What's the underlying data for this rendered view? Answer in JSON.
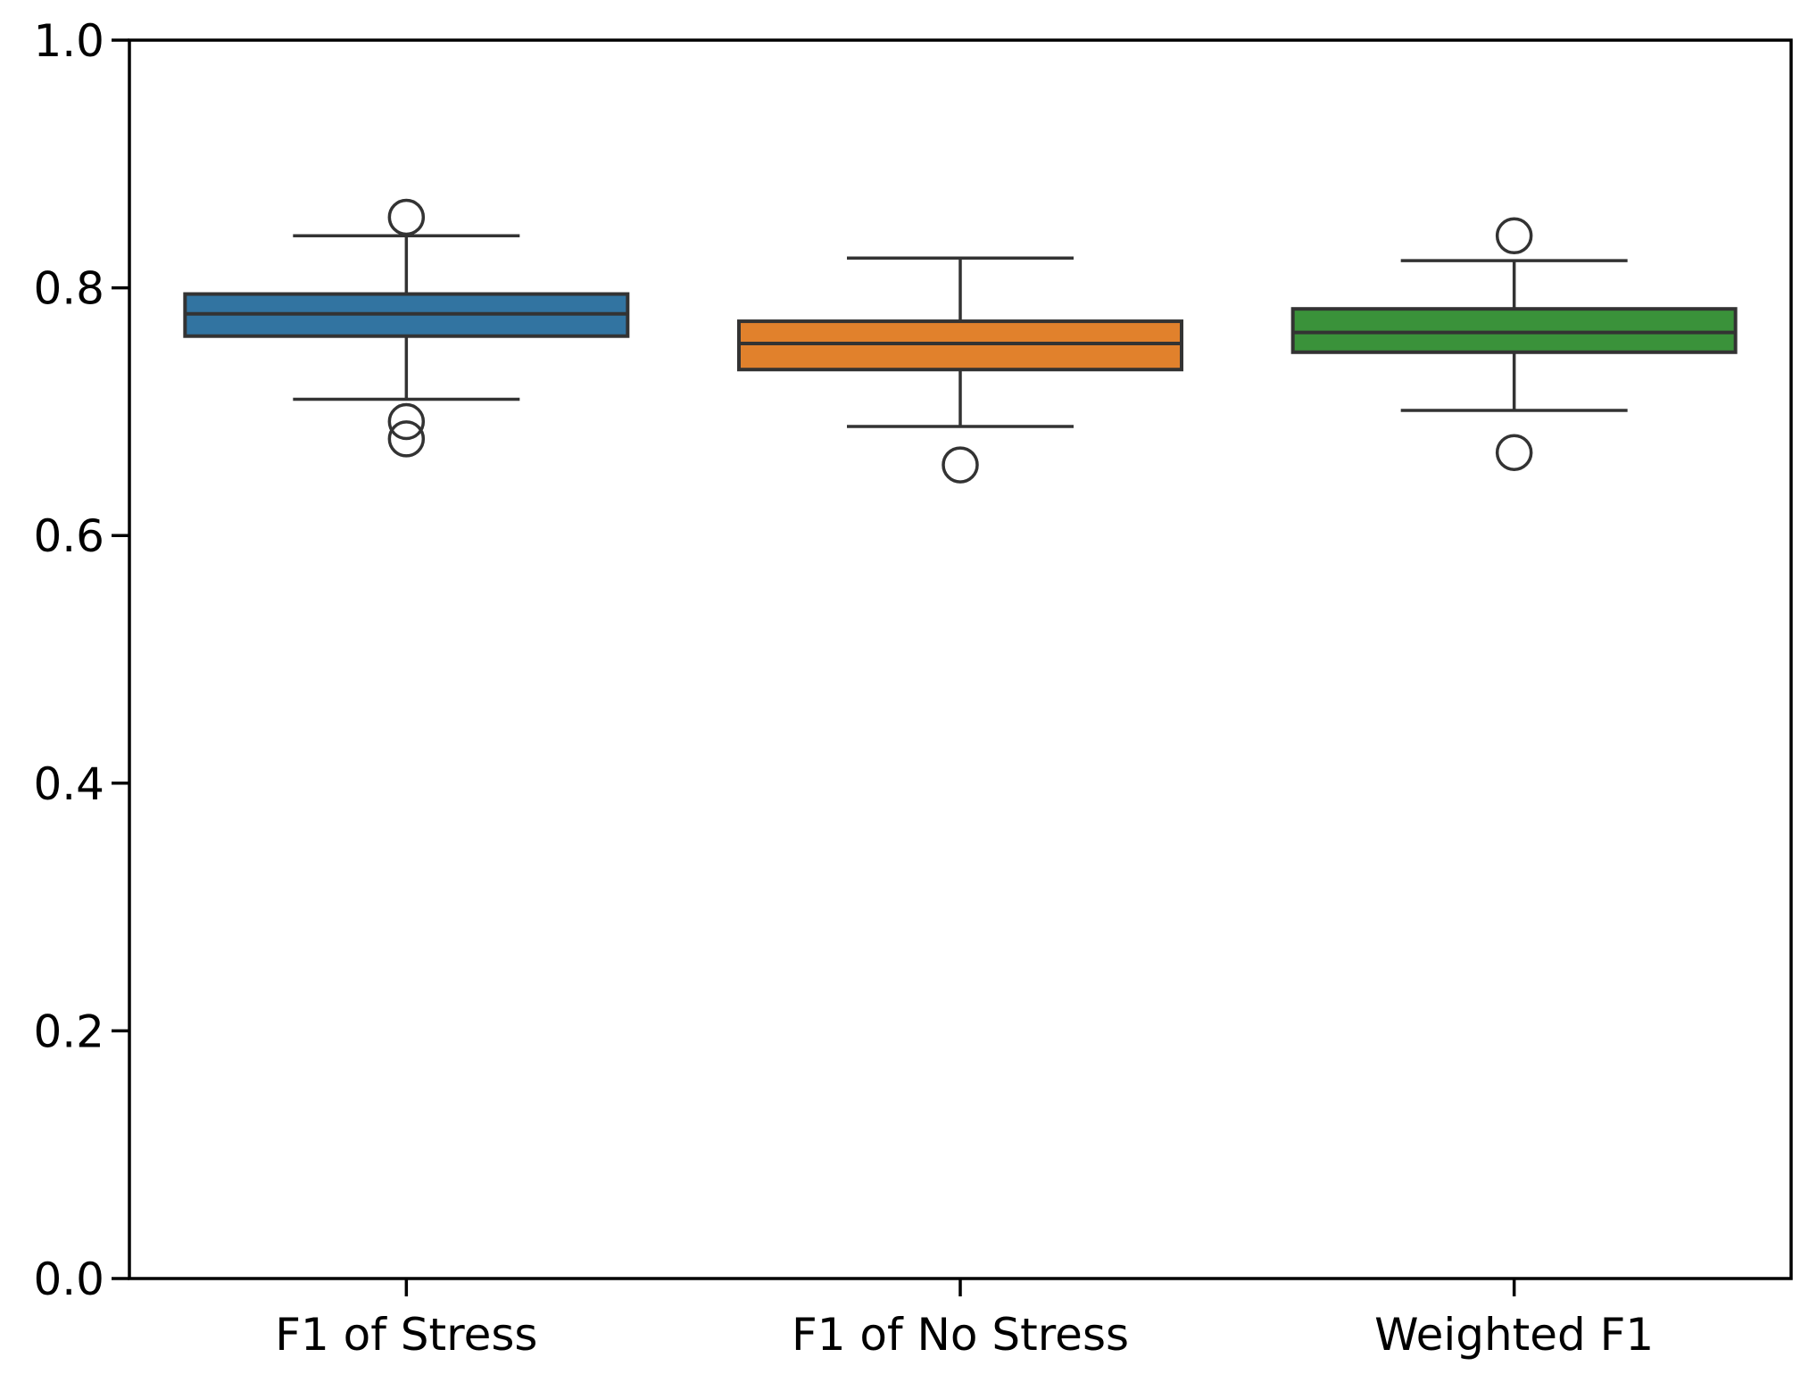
{
  "figure": {
    "background": "#ffffff",
    "title": ""
  },
  "chart_data": {
    "type": "boxplot",
    "title": "",
    "xlabel": "",
    "ylabel": "",
    "categories": [
      "F1 of Stress",
      "F1 of No Stress",
      "Weighted F1"
    ],
    "ylim": [
      0.0,
      1.0
    ],
    "ytick_labels": [
      "0.0",
      "0.2",
      "0.4",
      "0.6",
      "0.8",
      "1.0"
    ],
    "ytick_values": [
      0.0,
      0.2,
      0.4,
      0.6,
      0.8,
      1.0
    ],
    "grid": false,
    "legend": "none",
    "series": [
      {
        "name": "F1 of Stress",
        "fill_color": "#3274a1",
        "whisker_low": 0.71,
        "q1": 0.761,
        "median": 0.779,
        "q3": 0.795,
        "whisker_high": 0.842,
        "outliers": [
          0.857,
          0.692,
          0.678
        ]
      },
      {
        "name": "F1 of No Stress",
        "fill_color": "#e1812c",
        "whisker_low": 0.688,
        "q1": 0.734,
        "median": 0.755,
        "q3": 0.773,
        "whisker_high": 0.824,
        "outliers": [
          0.657
        ]
      },
      {
        "name": "Weighted F1",
        "fill_color": "#3a923a",
        "whisker_low": 0.701,
        "q1": 0.748,
        "median": 0.764,
        "q3": 0.783,
        "whisker_high": 0.822,
        "outliers": [
          0.842,
          0.667
        ]
      }
    ],
    "style": {
      "box_edge_color": "#333333",
      "whisker_color": "#333333",
      "median_color": "#333333",
      "outlier_edge_color": "#333333",
      "axis_color": "#000000",
      "tick_label_color": "#000000"
    }
  }
}
